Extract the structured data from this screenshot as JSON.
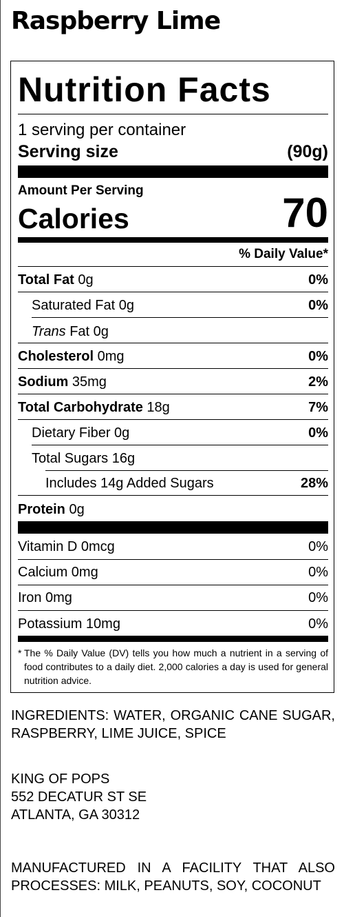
{
  "product_name": "Raspberry Lime",
  "nutrition": {
    "title": "Nutrition Facts",
    "servings_per_container": "1 serving per container",
    "serving_size_label": "Serving size",
    "serving_size_value": "(90g)",
    "amount_per_serving": "Amount Per Serving",
    "calories_label": "Calories",
    "calories_value": "70",
    "daily_value_header": "% Daily Value*",
    "nutrients": [
      {
        "name": "Total Fat",
        "amount": " 0g",
        "dv": "0%"
      },
      {
        "name": "Saturated Fat",
        "amount": " 0g",
        "dv": "0%"
      },
      {
        "name": "Trans",
        "name_suffix": " Fat 0g",
        "dv": ""
      },
      {
        "name": "Cholesterol",
        "amount": " 0mg",
        "dv": "0%"
      },
      {
        "name": "Sodium",
        "amount": " 35mg",
        "dv": "2%"
      },
      {
        "name": "Total Carbohydrate",
        "amount": " 18g",
        "dv": "7%"
      },
      {
        "name": "Dietary Fiber",
        "amount": " 0g",
        "dv": "0%"
      },
      {
        "name": "Total Sugars",
        "amount": " 16g",
        "dv": ""
      },
      {
        "name": "Includes 14g Added Sugars",
        "dv": "28%"
      },
      {
        "name": "Protein",
        "amount": " 0g",
        "dv": ""
      }
    ],
    "vitamins": [
      {
        "name": "Vitamin D 0mcg",
        "dv": "0%"
      },
      {
        "name": "Calcium 0mg",
        "dv": "0%"
      },
      {
        "name": "Iron 0mg",
        "dv": "0%"
      },
      {
        "name": "Potassium 10mg",
        "dv": "0%"
      }
    ],
    "footnote_star": "*",
    "footnote": "The % Daily Value (DV) tells you how much a nutrient in a serving of food contributes to a daily diet. 2,000 calories a day is used for general nutrition advice."
  },
  "ingredients": "INGREDIENTS: WATER, ORGANIC CANE SUGAR, RASPBERRY, LIME JUICE, SPICE",
  "manufacturer": {
    "name": "KING OF POPS",
    "street": "552 DECATUR ST SE",
    "city": "ATLANTA, GA 30312"
  },
  "allergen_statement": "MANUFACTURED IN A FACILITY THAT ALSO PROCESSES: MILK, PEANUTS, SOY, COCONUT"
}
